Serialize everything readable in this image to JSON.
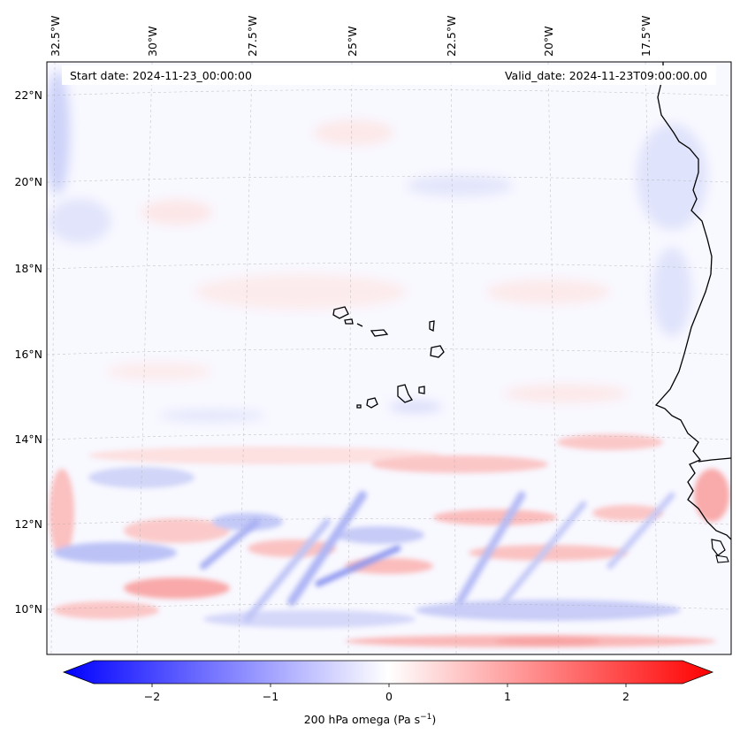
{
  "header": {
    "start_date": "Start date: 2024-11-23_00:00:00",
    "valid_date": "Valid_date: 2024-11-23T09:00:00.00"
  },
  "axes": {
    "lon_labels": [
      "32.5°W",
      "30°W",
      "27.5°W",
      "25°W",
      "22.5°W",
      "20°W",
      "17.5°W"
    ],
    "lat_labels": [
      "22°N",
      "20°N",
      "18°N",
      "16°N",
      "14°N",
      "12°N",
      "10°N"
    ]
  },
  "colorbar": {
    "label": "200 hPa omega (Pa s",
    "label_sup": "−1",
    "label_close": ")",
    "ticks": [
      "−2",
      "−1",
      "0",
      "1",
      "2"
    ],
    "min": -2.7,
    "max": 2.7,
    "colors": {
      "neg": "#0000ff",
      "zero": "#ffffff",
      "pos": "#ff0000"
    }
  }
}
